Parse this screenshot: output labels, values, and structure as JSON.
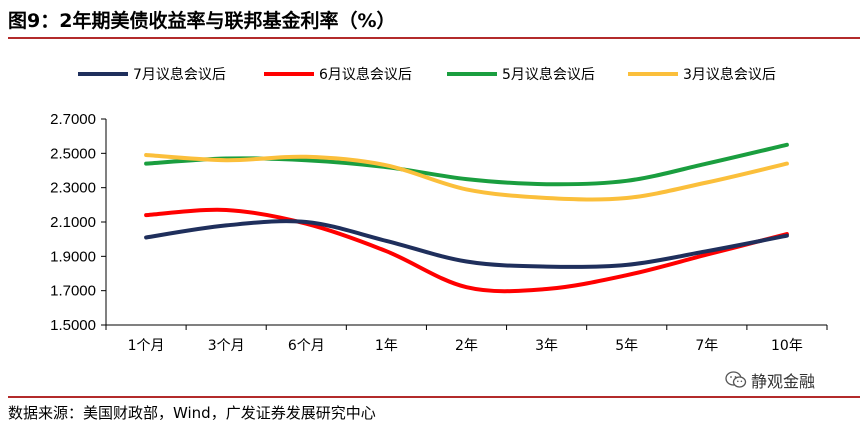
{
  "title": "图9：2年期美债收益率与联邦基金利率（%）",
  "source": "数据来源：美国财政部，Wind，广发证券发展研究中心",
  "watermark": "静观金融",
  "watermark_icon": "wechat-icon",
  "chart_data": {
    "type": "line",
    "title": "",
    "xlabel": "",
    "ylabel": "",
    "categories": [
      "1个月",
      "3个月",
      "6个月",
      "1年",
      "2年",
      "3年",
      "5年",
      "7年",
      "10年"
    ],
    "ylim": [
      1.5,
      2.7
    ],
    "yticks": [
      "1.5000",
      "1.7000",
      "1.9000",
      "2.1000",
      "2.3000",
      "2.5000",
      "2.7000"
    ],
    "grid": false,
    "legend_position": "top",
    "series": [
      {
        "name": "7月议息会议后",
        "color": "#1f2f5c",
        "values": [
          2.01,
          2.08,
          2.1,
          1.99,
          1.87,
          1.84,
          1.85,
          1.93,
          2.02
        ]
      },
      {
        "name": "6月议息会议后",
        "color": "#ff0000",
        "values": [
          2.14,
          2.17,
          2.09,
          1.93,
          1.72,
          1.71,
          1.79,
          1.91,
          2.03
        ]
      },
      {
        "name": "5月议息会议后",
        "color": "#1a9e3f",
        "values": [
          2.44,
          2.47,
          2.46,
          2.42,
          2.35,
          2.32,
          2.34,
          2.44,
          2.55
        ]
      },
      {
        "name": "3月议息会议后",
        "color": "#fbbf3b",
        "values": [
          2.49,
          2.46,
          2.48,
          2.43,
          2.29,
          2.24,
          2.24,
          2.33,
          2.44
        ]
      }
    ]
  }
}
